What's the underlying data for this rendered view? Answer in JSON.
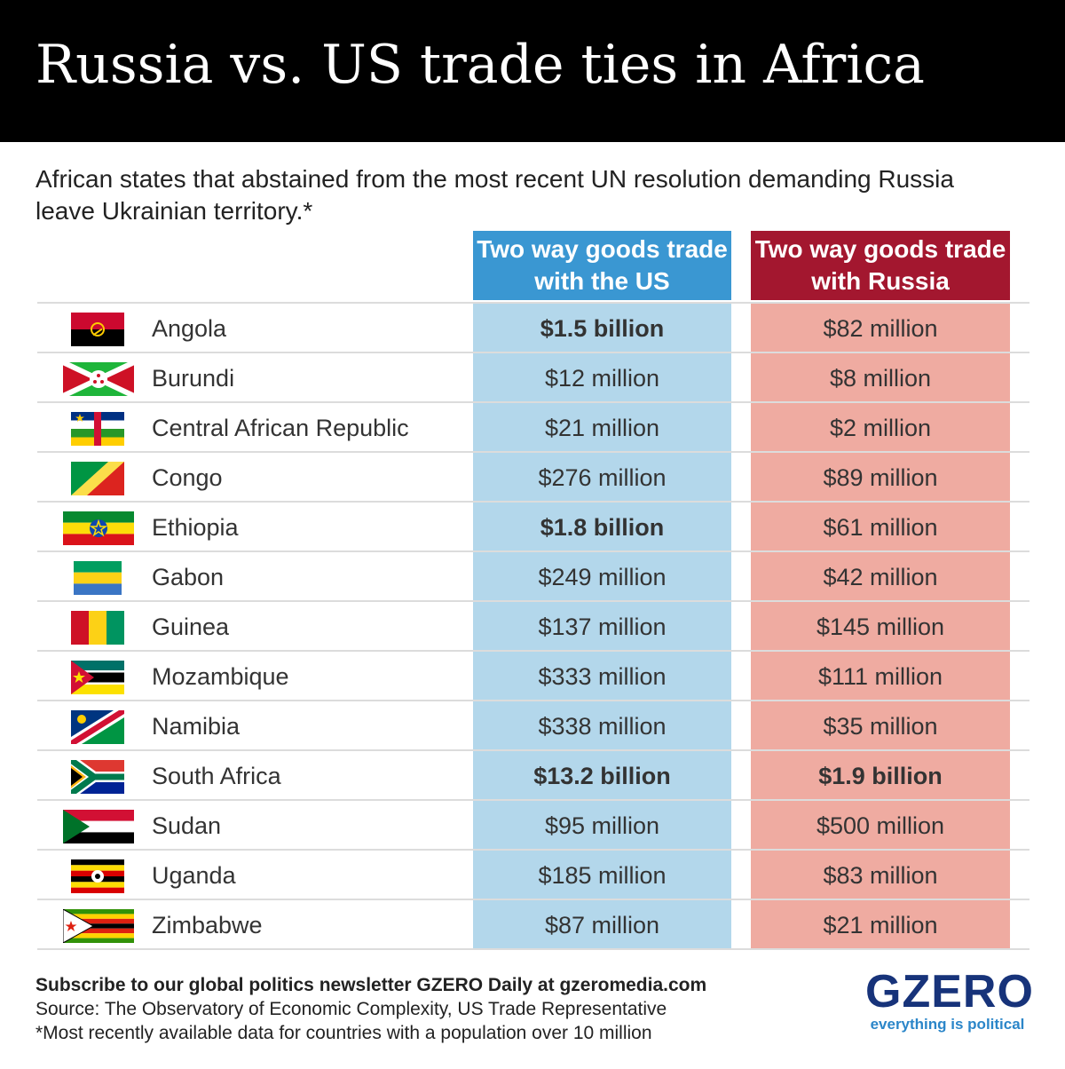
{
  "header": {
    "title": "Russia vs. US trade ties in Africa",
    "subtitle": "African states that abstained from the most recent UN resolution demanding Russia leave Ukrainian territory.*"
  },
  "chart_data": {
    "type": "table",
    "columns": [
      "Two way goods trade with the US",
      "Two way goods trade with Russia"
    ],
    "column_colors": [
      "#3a97d2",
      "#a3172f"
    ],
    "rows": [
      {
        "country": "Angola",
        "flag": "angola-flag-icon",
        "us": "$1.5 billion",
        "russia": "$82 million",
        "us_bold": true,
        "russia_bold": false
      },
      {
        "country": "Burundi",
        "flag": "burundi-flag-icon",
        "us": "$12 million",
        "russia": "$8 million",
        "us_bold": false,
        "russia_bold": false
      },
      {
        "country": "Central African Republic",
        "flag": "car-flag-icon",
        "us": "$21 million",
        "russia": "$2 million",
        "us_bold": false,
        "russia_bold": false
      },
      {
        "country": "Congo",
        "flag": "congo-flag-icon",
        "us": "$276 million",
        "russia": "$89 million",
        "us_bold": false,
        "russia_bold": false
      },
      {
        "country": "Ethiopia",
        "flag": "ethiopia-flag-icon",
        "us": "$1.8 billion",
        "russia": "$61 million",
        "us_bold": true,
        "russia_bold": false
      },
      {
        "country": "Gabon",
        "flag": "gabon-flag-icon",
        "us": "$249 million",
        "russia": "$42 million",
        "us_bold": false,
        "russia_bold": false
      },
      {
        "country": "Guinea",
        "flag": "guinea-flag-icon",
        "us": "$137 million",
        "russia": "$145 million",
        "us_bold": false,
        "russia_bold": false
      },
      {
        "country": "Mozambique",
        "flag": "mozambique-flag-icon",
        "us": "$333 million",
        "russia": "$111 million",
        "us_bold": false,
        "russia_bold": false
      },
      {
        "country": "Namibia",
        "flag": "namibia-flag-icon",
        "us": "$338 million",
        "russia": "$35 million",
        "us_bold": false,
        "russia_bold": false
      },
      {
        "country": "South Africa",
        "flag": "south-africa-flag-icon",
        "us": "$13.2 billion",
        "russia": "$1.9 billion",
        "us_bold": true,
        "russia_bold": true
      },
      {
        "country": "Sudan",
        "flag": "sudan-flag-icon",
        "us": "$95 million",
        "russia": "$500 million",
        "us_bold": false,
        "russia_bold": false
      },
      {
        "country": "Uganda",
        "flag": "uganda-flag-icon",
        "us": "$185 million",
        "russia": "$83 million",
        "us_bold": false,
        "russia_bold": false
      },
      {
        "country": "Zimbabwe",
        "flag": "zimbabwe-flag-icon",
        "us": "$87 million",
        "russia": "$21 million",
        "us_bold": false,
        "russia_bold": false
      }
    ]
  },
  "footer": {
    "subscribe": "Subscribe to our global politics newsletter GZERO Daily at gzeromedia.com",
    "source": "Source: The Observatory of Economic Complexity, US Trade Representative",
    "note": "*Most recently available data for countries with a population over 10 million"
  },
  "logo": {
    "word": "GZERO",
    "tagline": "everything is political"
  }
}
